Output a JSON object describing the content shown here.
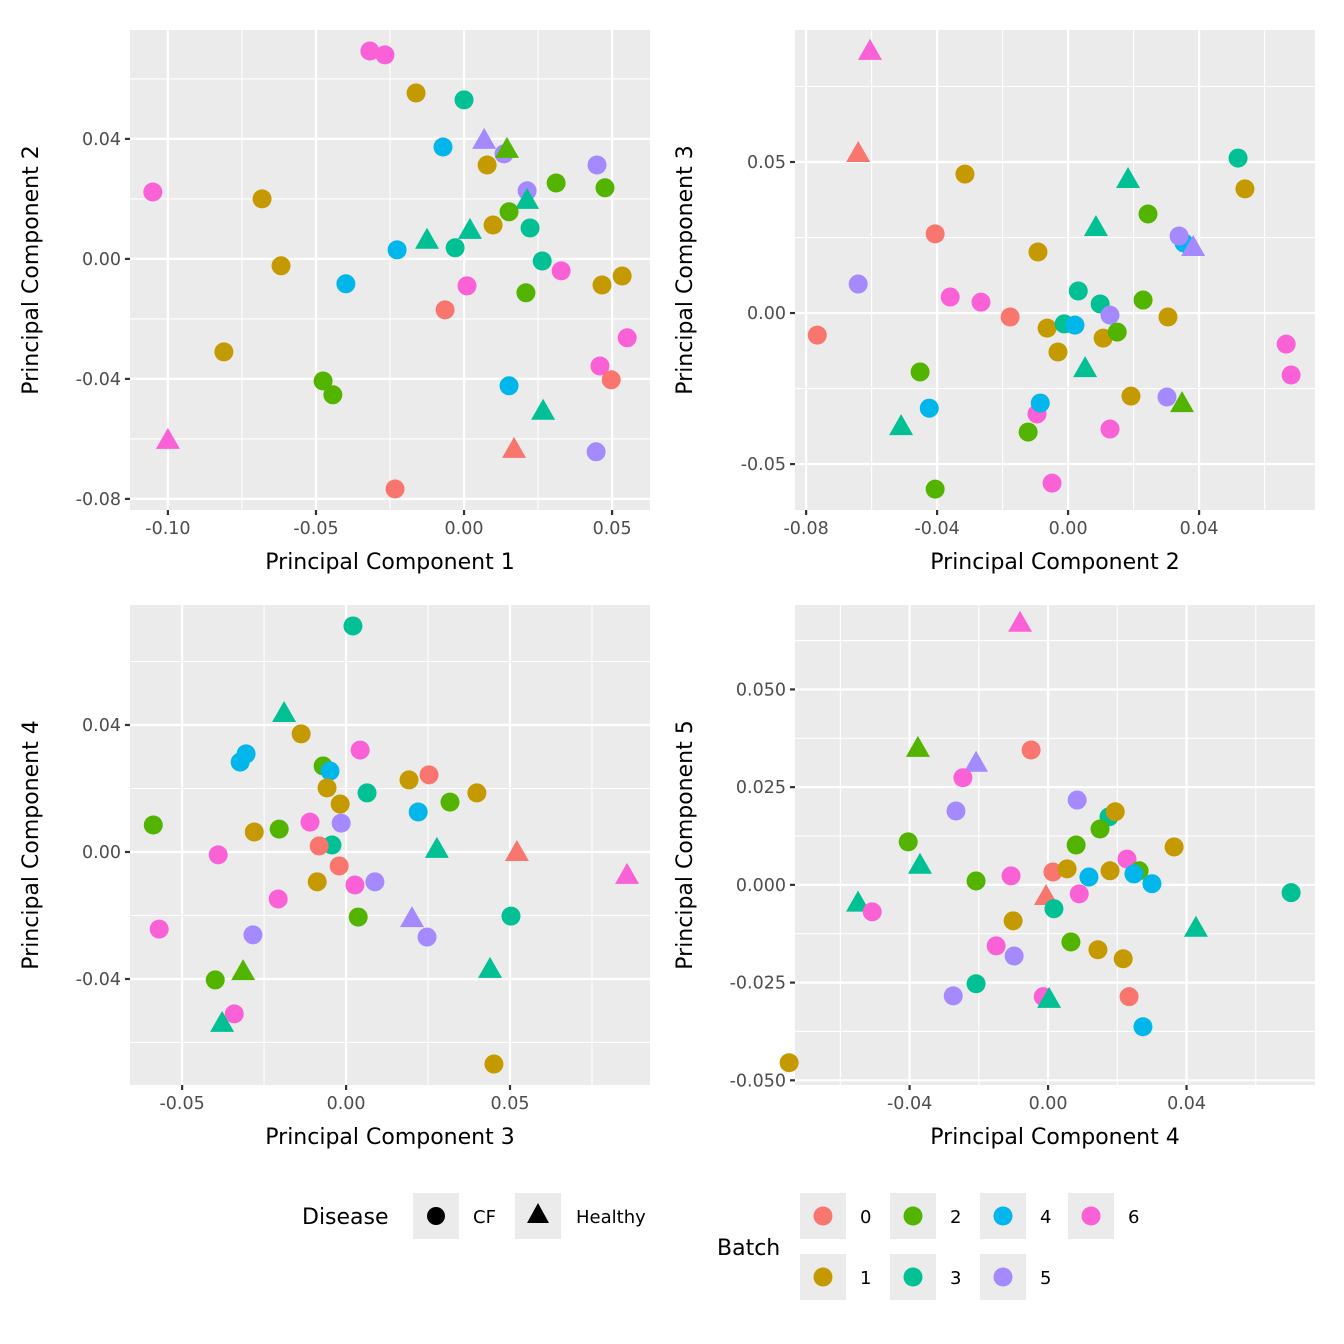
{
  "chart_data": [
    {
      "type": "scatter",
      "title": "",
      "xlabel": "Principal Component 1",
      "ylabel": "Principal Component 2",
      "xlim": [
        -0.1128,
        0.0628
      ],
      "ylim": [
        -0.0837,
        0.0763
      ],
      "xticks": [
        -0.1,
        -0.05,
        0.0,
        0.05
      ],
      "xtick_labels": [
        "-0.10",
        "-0.05",
        "0.00",
        "0.05"
      ],
      "yticks": [
        -0.08,
        -0.04,
        0.0,
        0.04
      ],
      "ytick_labels": [
        "-0.08",
        "-0.04",
        "0.00",
        "0.04"
      ],
      "grid": true,
      "points": [
        [
          -0.0318,
          0.0693,
          "6",
          "CF"
        ],
        [
          -0.0267,
          0.068,
          "6",
          "CF"
        ],
        [
          -0.0162,
          0.0553,
          "1",
          "CF"
        ],
        [
          0.0,
          0.053,
          "3",
          "CF"
        ],
        [
          0.0068,
          0.04,
          "5",
          "Healthy"
        ],
        [
          -0.0071,
          0.0373,
          "4",
          "CF"
        ],
        [
          0.0135,
          0.035,
          "5",
          "CF"
        ],
        [
          0.0145,
          0.037,
          "2",
          "Healthy"
        ],
        [
          0.0078,
          0.0313,
          "1",
          "CF"
        ],
        [
          0.0449,
          0.0313,
          "5",
          "CF"
        ],
        [
          -0.1051,
          0.0223,
          "6",
          "CF"
        ],
        [
          -0.0682,
          0.02,
          "1",
          "CF"
        ],
        [
          0.0213,
          0.0227,
          "5",
          "CF"
        ],
        [
          0.0213,
          0.02,
          "3",
          "Healthy"
        ],
        [
          0.0311,
          0.0253,
          "2",
          "CF"
        ],
        [
          0.0476,
          0.0237,
          "2",
          "CF"
        ],
        [
          0.0152,
          0.0157,
          "2",
          "CF"
        ],
        [
          0.0098,
          0.0113,
          "1",
          "CF"
        ],
        [
          0.0223,
          0.0103,
          "3",
          "CF"
        ],
        [
          -0.0125,
          0.0067,
          "3",
          "Healthy"
        ],
        [
          0.002,
          0.01,
          "3",
          "Healthy"
        ],
        [
          -0.0226,
          0.003,
          "4",
          "CF"
        ],
        [
          -0.003,
          0.0037,
          "3",
          "CF"
        ],
        [
          -0.0618,
          -0.0023,
          "1",
          "CF"
        ],
        [
          -0.0399,
          -0.0083,
          "4",
          "CF"
        ],
        [
          0.0264,
          -0.0007,
          "3",
          "CF"
        ],
        [
          0.0328,
          -0.004,
          "6",
          "CF"
        ],
        [
          0.001,
          -0.009,
          "6",
          "CF"
        ],
        [
          0.0466,
          -0.0087,
          "1",
          "CF"
        ],
        [
          0.0534,
          -0.0057,
          "1",
          "CF"
        ],
        [
          0.0209,
          -0.0113,
          "2",
          "CF"
        ],
        [
          -0.0064,
          -0.017,
          "0",
          "CF"
        ],
        [
          0.0551,
          -0.0263,
          "6",
          "CF"
        ],
        [
          -0.0811,
          -0.031,
          "1",
          "CF"
        ],
        [
          0.0459,
          -0.0357,
          "6",
          "CF"
        ],
        [
          0.0497,
          -0.0403,
          "0",
          "CF"
        ],
        [
          0.0152,
          -0.0423,
          "4",
          "CF"
        ],
        [
          -0.0476,
          -0.0407,
          "2",
          "CF"
        ],
        [
          -0.0443,
          -0.0453,
          "2",
          "CF"
        ],
        [
          0.0267,
          -0.0503,
          "3",
          "Healthy"
        ],
        [
          0.0169,
          -0.063,
          "0",
          "Healthy"
        ],
        [
          0.0446,
          -0.0643,
          "5",
          "CF"
        ],
        [
          -0.1,
          -0.06,
          "6",
          "Healthy"
        ],
        [
          -0.0233,
          -0.0767,
          "0",
          "CF"
        ]
      ]
    },
    {
      "type": "scatter",
      "title": "",
      "xlabel": "Principal Component 2",
      "ylabel": "Principal Component 3",
      "xlim": [
        -0.0834,
        0.0754
      ],
      "ylim": [
        -0.0652,
        0.0937
      ],
      "xticks": [
        -0.08,
        -0.04,
        0.0,
        0.04
      ],
      "xtick_labels": [
        "-0.08",
        "-0.04",
        "0.00",
        "0.04"
      ],
      "yticks": [
        -0.05,
        0.0,
        0.05
      ],
      "ytick_labels": [
        "-0.05",
        "0.00",
        "0.05"
      ],
      "grid": true,
      "points": [
        [
          -0.0605,
          0.0871,
          "6",
          "Healthy"
        ],
        [
          -0.0641,
          0.0533,
          "0",
          "Healthy"
        ],
        [
          -0.0315,
          0.046,
          "1",
          "CF"
        ],
        [
          0.0519,
          0.0513,
          "3",
          "CF"
        ],
        [
          0.054,
          0.0411,
          "1",
          "CF"
        ],
        [
          0.0183,
          0.0447,
          "3",
          "Healthy"
        ],
        [
          0.0244,
          0.0328,
          "2",
          "CF"
        ],
        [
          0.0085,
          0.0288,
          "3",
          "Healthy"
        ],
        [
          -0.0406,
          0.0262,
          "0",
          "CF"
        ],
        [
          0.0354,
          0.0232,
          "4",
          "CF"
        ],
        [
          0.0339,
          0.0255,
          "5",
          "CF"
        ],
        [
          0.0382,
          0.0222,
          "5",
          "Healthy"
        ],
        [
          -0.0092,
          0.0202,
          "1",
          "CF"
        ],
        [
          -0.0641,
          0.0096,
          "5",
          "CF"
        ],
        [
          -0.036,
          0.0053,
          "6",
          "CF"
        ],
        [
          -0.0266,
          0.0036,
          "6",
          "CF"
        ],
        [
          0.0031,
          0.0073,
          "3",
          "CF"
        ],
        [
          0.0098,
          0.003,
          "3",
          "CF"
        ],
        [
          0.0229,
          0.0043,
          "2",
          "CF"
        ],
        [
          -0.0177,
          -0.0013,
          "0",
          "CF"
        ],
        [
          -0.0064,
          -0.005,
          "1",
          "CF"
        ],
        [
          -0.0012,
          -0.0036,
          "3",
          "CF"
        ],
        [
          0.0021,
          -0.004,
          "4",
          "CF"
        ],
        [
          0.0128,
          -0.0007,
          "5",
          "CF"
        ],
        [
          0.0305,
          -0.0013,
          "1",
          "CF"
        ],
        [
          0.0107,
          -0.0083,
          "1",
          "CF"
        ],
        [
          0.015,
          -0.0063,
          "2",
          "CF"
        ],
        [
          -0.0031,
          -0.0129,
          "1",
          "CF"
        ],
        [
          0.0052,
          -0.0179,
          "3",
          "Healthy"
        ],
        [
          -0.0452,
          -0.0195,
          "2",
          "CF"
        ],
        [
          0.0192,
          -0.0275,
          "1",
          "CF"
        ],
        [
          0.0302,
          -0.0278,
          "5",
          "CF"
        ],
        [
          0.0348,
          -0.0295,
          "2",
          "Healthy"
        ],
        [
          -0.0424,
          -0.0315,
          "4",
          "CF"
        ],
        [
          -0.051,
          -0.0371,
          "3",
          "Healthy"
        ],
        [
          -0.0095,
          -0.0334,
          "6",
          "CF"
        ],
        [
          -0.0085,
          -0.0298,
          "4",
          "CF"
        ],
        [
          -0.0122,
          -0.0394,
          "2",
          "CF"
        ],
        [
          0.0128,
          -0.0384,
          "6",
          "CF"
        ],
        [
          -0.0406,
          -0.0583,
          "2",
          "CF"
        ],
        [
          -0.0049,
          -0.0563,
          "6",
          "CF"
        ],
        [
          0.0666,
          -0.0103,
          "6",
          "CF"
        ],
        [
          0.0681,
          -0.0205,
          "6",
          "CF"
        ],
        [
          -0.0766,
          -0.0073,
          "0",
          "CF"
        ]
      ]
    },
    {
      "type": "scatter",
      "title": "",
      "xlabel": "Principal Component 3",
      "ylabel": "Principal Component 4",
      "xlim": [
        -0.0659,
        0.0927
      ],
      "ylim": [
        -0.0734,
        0.0778
      ],
      "xticks": [
        -0.05,
        0.0,
        0.05
      ],
      "xtick_labels": [
        "-0.05",
        "0.00",
        "0.05"
      ],
      "yticks": [
        -0.04,
        0.0,
        0.04
      ],
      "ytick_labels": [
        "-0.04",
        "0.00",
        "0.04"
      ],
      "grid": true,
      "points": [
        [
          0.0021,
          0.0712,
          "3",
          "CF"
        ],
        [
          -0.0189,
          0.0441,
          "3",
          "Healthy"
        ],
        [
          -0.0137,
          0.0372,
          "1",
          "CF"
        ],
        [
          0.0043,
          0.0321,
          "6",
          "CF"
        ],
        [
          -0.0305,
          0.0309,
          "4",
          "CF"
        ],
        [
          -0.0323,
          0.0283,
          "4",
          "CF"
        ],
        [
          -0.007,
          0.0271,
          "2",
          "CF"
        ],
        [
          -0.0049,
          0.0255,
          "4",
          "CF"
        ],
        [
          -0.0058,
          0.0202,
          "1",
          "CF"
        ],
        [
          0.0064,
          0.0186,
          "3",
          "CF"
        ],
        [
          0.0253,
          0.0243,
          "0",
          "CF"
        ],
        [
          0.0192,
          0.0227,
          "1",
          "CF"
        ],
        [
          0.0399,
          0.0186,
          "1",
          "CF"
        ],
        [
          0.0317,
          0.0157,
          "2",
          "CF"
        ],
        [
          -0.0018,
          0.0151,
          "1",
          "CF"
        ],
        [
          0.022,
          0.0126,
          "4",
          "CF"
        ],
        [
          -0.0588,
          0.0085,
          "2",
          "CF"
        ],
        [
          -0.028,
          0.0063,
          "1",
          "CF"
        ],
        [
          -0.0204,
          0.0072,
          "2",
          "CF"
        ],
        [
          -0.011,
          0.0094,
          "6",
          "CF"
        ],
        [
          -0.0015,
          0.0091,
          "5",
          "CF"
        ],
        [
          -0.0043,
          0.0022,
          "3",
          "CF"
        ],
        [
          -0.0082,
          0.0019,
          "0",
          "CF"
        ],
        [
          0.0277,
          0.0013,
          "3",
          "Healthy"
        ],
        [
          0.0521,
          0.0003,
          "0",
          "Healthy"
        ],
        [
          0.0857,
          -0.0069,
          "6",
          "Healthy"
        ],
        [
          -0.039,
          -0.0009,
          "6",
          "CF"
        ],
        [
          -0.0021,
          -0.0044,
          "0",
          "CF"
        ],
        [
          -0.0088,
          -0.0094,
          "1",
          "CF"
        ],
        [
          0.0027,
          -0.0104,
          "6",
          "CF"
        ],
        [
          0.0088,
          -0.0094,
          "5",
          "CF"
        ],
        [
          -0.0207,
          -0.0148,
          "6",
          "CF"
        ],
        [
          0.0037,
          -0.0205,
          "2",
          "CF"
        ],
        [
          0.0201,
          -0.0205,
          "5",
          "Healthy"
        ],
        [
          0.0503,
          -0.0202,
          "3",
          "CF"
        ],
        [
          0.0247,
          -0.0268,
          "5",
          "CF"
        ],
        [
          -0.057,
          -0.0243,
          "6",
          "CF"
        ],
        [
          -0.0284,
          -0.0261,
          "5",
          "CF"
        ],
        [
          -0.0314,
          -0.0372,
          "2",
          "Healthy"
        ],
        [
          -0.0399,
          -0.0403,
          "2",
          "CF"
        ],
        [
          0.0439,
          -0.0365,
          "3",
          "Healthy"
        ],
        [
          -0.0341,
          -0.051,
          "6",
          "CF"
        ],
        [
          -0.0378,
          -0.0535,
          "3",
          "Healthy"
        ],
        [
          0.0451,
          -0.0668,
          "1",
          "CF"
        ]
      ]
    },
    {
      "type": "scatter",
      "title": "",
      "xlabel": "Principal Component 4",
      "ylabel": "Principal Component 5",
      "xlim": [
        -0.0731,
        0.0771
      ],
      "ylim": [
        -0.0512,
        0.0716
      ],
      "xticks": [
        -0.04,
        0.0,
        0.04
      ],
      "xtick_labels": [
        "-0.04",
        "0.00",
        "0.04"
      ],
      "yticks": [
        -0.05,
        -0.025,
        0.0,
        0.025,
        0.05
      ],
      "ytick_labels": [
        "-0.050",
        "-0.025",
        "0.000",
        "0.025",
        "0.050"
      ],
      "grid": true,
      "points": [
        [
          -0.0081,
          0.0673,
          "6",
          "Healthy"
        ],
        [
          -0.0049,
          0.0345,
          "0",
          "CF"
        ],
        [
          -0.0376,
          0.0353,
          "2",
          "Healthy"
        ],
        [
          -0.0208,
          0.0315,
          "5",
          "Healthy"
        ],
        [
          -0.0246,
          0.0274,
          "6",
          "CF"
        ],
        [
          -0.0266,
          0.0189,
          "5",
          "CF"
        ],
        [
          0.0084,
          0.0217,
          "5",
          "CF"
        ],
        [
          0.0176,
          0.0174,
          "3",
          "CF"
        ],
        [
          0.0194,
          0.0187,
          "1",
          "CF"
        ],
        [
          0.015,
          0.0143,
          "2",
          "CF"
        ],
        [
          -0.0404,
          0.011,
          "2",
          "CF"
        ],
        [
          -0.037,
          0.0054,
          "3",
          "Healthy"
        ],
        [
          0.0081,
          0.0102,
          "2",
          "CF"
        ],
        [
          0.0364,
          0.0097,
          "1",
          "CF"
        ],
        [
          0.0228,
          0.0066,
          "6",
          "CF"
        ],
        [
          0.0014,
          0.0033,
          "0",
          "CF"
        ],
        [
          0.0055,
          0.0041,
          "1",
          "CF"
        ],
        [
          0.0118,
          0.002,
          "4",
          "CF"
        ],
        [
          0.0179,
          0.0036,
          "1",
          "CF"
        ],
        [
          0.0263,
          0.0036,
          "2",
          "CF"
        ],
        [
          0.0248,
          0.0028,
          "4",
          "CF"
        ],
        [
          0.03,
          0.0003,
          "4",
          "CF"
        ],
        [
          -0.0107,
          0.0023,
          "6",
          "CF"
        ],
        [
          -0.0208,
          0.001,
          "2",
          "CF"
        ],
        [
          -0.0549,
          -0.0043,
          "3",
          "Healthy"
        ],
        [
          -0.0508,
          -0.0069,
          "6",
          "CF"
        ],
        [
          -0.0006,
          -0.0026,
          "0",
          "Healthy"
        ],
        [
          0.009,
          -0.0023,
          "6",
          "CF"
        ],
        [
          0.0017,
          -0.0061,
          "3",
          "CF"
        ],
        [
          0.0702,
          -0.002,
          "3",
          "CF"
        ],
        [
          -0.0101,
          -0.0092,
          "1",
          "CF"
        ],
        [
          0.0427,
          -0.0107,
          "3",
          "Healthy"
        ],
        [
          0.0066,
          -0.0146,
          "2",
          "CF"
        ],
        [
          -0.015,
          -0.0156,
          "6",
          "CF"
        ],
        [
          0.0144,
          -0.0166,
          "1",
          "CF"
        ],
        [
          -0.0098,
          -0.0182,
          "5",
          "CF"
        ],
        [
          0.0217,
          -0.0189,
          "1",
          "CF"
        ],
        [
          -0.0208,
          -0.0253,
          "3",
          "CF"
        ],
        [
          -0.0274,
          -0.0284,
          "5",
          "CF"
        ],
        [
          -0.0014,
          -0.0286,
          "6",
          "CF"
        ],
        [
          0.0003,
          -0.0289,
          "3",
          "Healthy"
        ],
        [
          0.0234,
          -0.0286,
          "0",
          "CF"
        ],
        [
          0.0274,
          -0.0363,
          "4",
          "CF"
        ],
        [
          -0.0748,
          -0.0455,
          "1",
          "CF"
        ]
      ]
    }
  ],
  "legend": {
    "placement": "bottom",
    "disease": {
      "title": "Disease",
      "items": [
        {
          "label": "CF",
          "shape": "circle"
        },
        {
          "label": "Healthy",
          "shape": "triangle"
        }
      ]
    },
    "batch": {
      "title": "Batch",
      "items": [
        {
          "label": "0",
          "color": "#F8766D"
        },
        {
          "label": "1",
          "color": "#C49A00"
        },
        {
          "label": "2",
          "color": "#53B400"
        },
        {
          "label": "3",
          "color": "#00C094"
        },
        {
          "label": "4",
          "color": "#00B6EB"
        },
        {
          "label": "5",
          "color": "#A58AFF"
        },
        {
          "label": "6",
          "color": "#FB61D7"
        }
      ]
    }
  },
  "colors": {
    "panel_background": "#EBEBEB",
    "grid": "#FFFFFF",
    "tick_text": "#4D4D4D",
    "tick_mark": "#333333",
    "shape_key": "#000000"
  }
}
